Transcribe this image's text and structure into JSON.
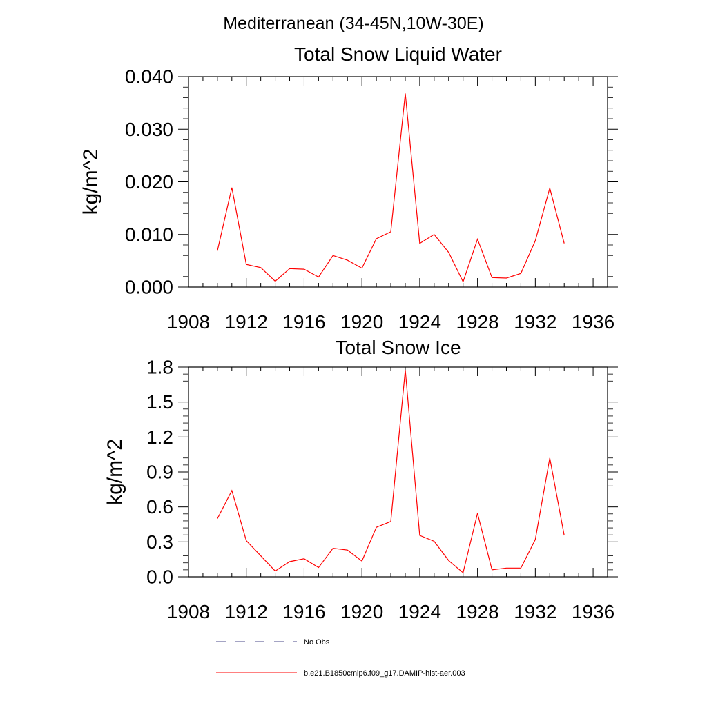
{
  "figure": {
    "suptitle": "Mediterranean (34-45N,10W-30E)"
  },
  "legend": {
    "entries": [
      {
        "label": "No Obs",
        "style": "dashed",
        "color": "#4a4a8a"
      },
      {
        "label": "b.e21.B1850cmip6.f09_g17.DAMIP-hist-aer.003",
        "style": "solid",
        "color": "#ff0000"
      }
    ]
  },
  "chart_data": [
    {
      "type": "line",
      "title": "Total Snow Liquid Water",
      "xlabel": "",
      "ylabel": "kg/m^2",
      "xlim": [
        1908,
        1937
      ],
      "ylim": [
        0,
        0.04
      ],
      "xticks": [
        1908,
        1912,
        1916,
        1920,
        1924,
        1928,
        1932,
        1936
      ],
      "yticks": [
        0.0,
        0.01,
        0.02,
        0.03,
        0.04
      ],
      "ytick_labels": [
        "0.000",
        "0.010",
        "0.020",
        "0.030",
        "0.040"
      ],
      "grid": false,
      "series": [
        {
          "color": "#ff0000",
          "x": [
            1910,
            1911,
            1912,
            1913,
            1914,
            1915,
            1916,
            1917,
            1918,
            1919,
            1920,
            1921,
            1922,
            1923,
            1924,
            1925,
            1926,
            1927,
            1928,
            1929,
            1930,
            1931,
            1932,
            1933,
            1934
          ],
          "y": [
            0.0069,
            0.0189,
            0.0043,
            0.0037,
            0.0011,
            0.0035,
            0.0034,
            0.0019,
            0.006,
            0.0051,
            0.0036,
            0.0092,
            0.0105,
            0.0368,
            0.0083,
            0.01,
            0.0066,
            0.001,
            0.0091,
            0.0018,
            0.0017,
            0.0026,
            0.0088,
            0.0188,
            0.0083
          ]
        }
      ]
    },
    {
      "type": "line",
      "title": "Total Snow Ice",
      "xlabel": "",
      "ylabel": "kg/m^2",
      "xlim": [
        1908,
        1937
      ],
      "ylim": [
        0,
        1.8
      ],
      "xticks": [
        1908,
        1912,
        1916,
        1920,
        1924,
        1928,
        1932,
        1936
      ],
      "yticks": [
        0.0,
        0.3,
        0.6,
        0.9,
        1.2,
        1.5,
        1.8
      ],
      "ytick_labels": [
        "0.0",
        "0.3",
        "0.6",
        "0.9",
        "1.2",
        "1.5",
        "1.8"
      ],
      "grid": false,
      "series": [
        {
          "color": "#ff0000",
          "x": [
            1910,
            1911,
            1912,
            1913,
            1914,
            1915,
            1916,
            1917,
            1918,
            1919,
            1920,
            1921,
            1922,
            1923,
            1924,
            1925,
            1926,
            1927,
            1928,
            1929,
            1930,
            1931,
            1932,
            1933,
            1934
          ],
          "y": [
            0.5,
            0.74,
            0.31,
            0.18,
            0.05,
            0.13,
            0.155,
            0.08,
            0.245,
            0.23,
            0.135,
            0.425,
            0.475,
            1.775,
            0.355,
            0.305,
            0.14,
            0.035,
            0.545,
            0.06,
            0.075,
            0.075,
            0.32,
            1.02,
            0.355
          ]
        }
      ]
    }
  ]
}
